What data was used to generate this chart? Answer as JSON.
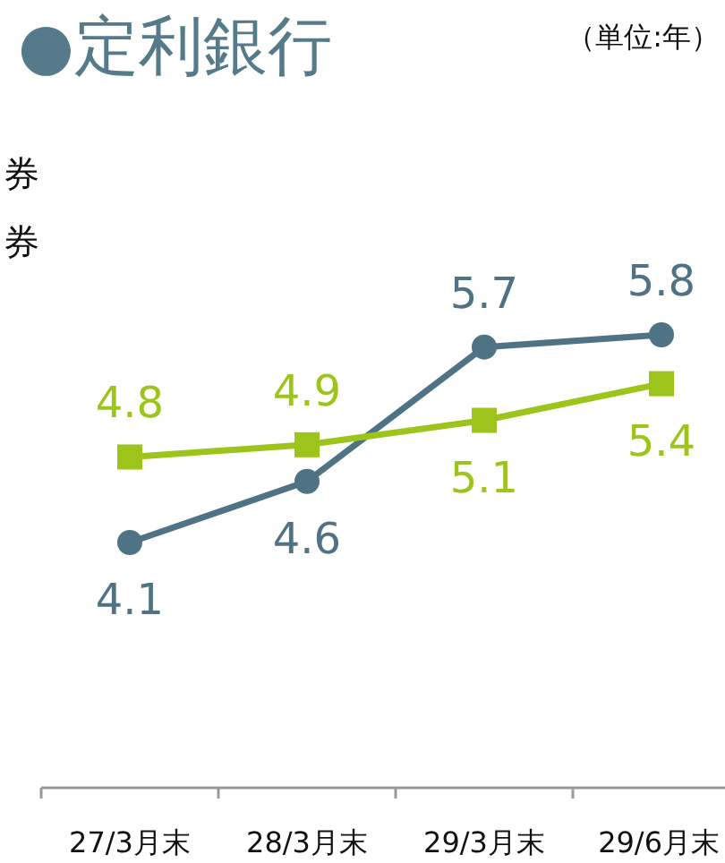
{
  "chart_data": {
    "type": "line",
    "title": "●定利銀行",
    "subtitle": "（単位:年）",
    "annotations": [
      "券",
      "券"
    ],
    "categories": [
      "27/3月末",
      "28/3月末",
      "29/3月末",
      "29/6月末"
    ],
    "series": [
      {
        "color": "#4f7384",
        "marker": "circle",
        "values": [
          4.1,
          4.6,
          5.7,
          5.8
        ]
      },
      {
        "color": "#9dc41a",
        "marker": "square",
        "values": [
          4.8,
          4.9,
          5.1,
          5.4
        ]
      }
    ],
    "data_labels": true
  }
}
